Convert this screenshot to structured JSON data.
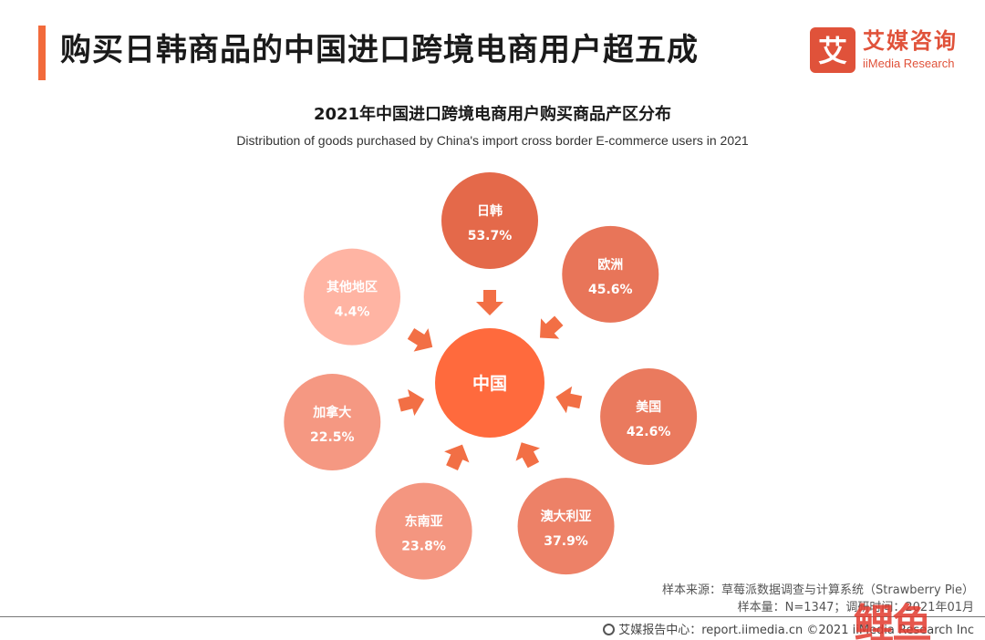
{
  "page": {
    "title": "购买日韩商品的中国进口跨境电商用户超五成"
  },
  "logo": {
    "cn": "艾媒咨询",
    "en": "iiMedia Research",
    "mark": "艾"
  },
  "colors": {
    "accent": "#F26A3B",
    "center": "#FF6A3D",
    "arrow": "#F26F45",
    "gradient_high": "#E4694A",
    "gradient_low": "#FFB4A3"
  },
  "chart_data": {
    "type": "radial-bubble",
    "title": "2021年中国进口跨境电商用户购买商品产区分布",
    "subtitle": "Distribution of goods purchased by China's import cross border E-commerce users in 2021",
    "center_label": "中国",
    "unit": "%",
    "categories": [
      "日韩",
      "欧洲",
      "美国",
      "澳大利亚",
      "东南亚",
      "加拿大",
      "其他地区"
    ],
    "values": [
      53.7,
      45.6,
      42.6,
      37.9,
      23.8,
      22.5,
      4.4
    ]
  },
  "footer": {
    "source": "样本来源：草莓派数据调查与计算系统（Strawberry Pie）",
    "sample": "样本量：N=1347；调研时间：2021年01月",
    "copyright": "艾媒报告中心：report.iimedia.cn   ©2021  iiMedia Research  Inc",
    "watermark": "鲤鱼"
  }
}
